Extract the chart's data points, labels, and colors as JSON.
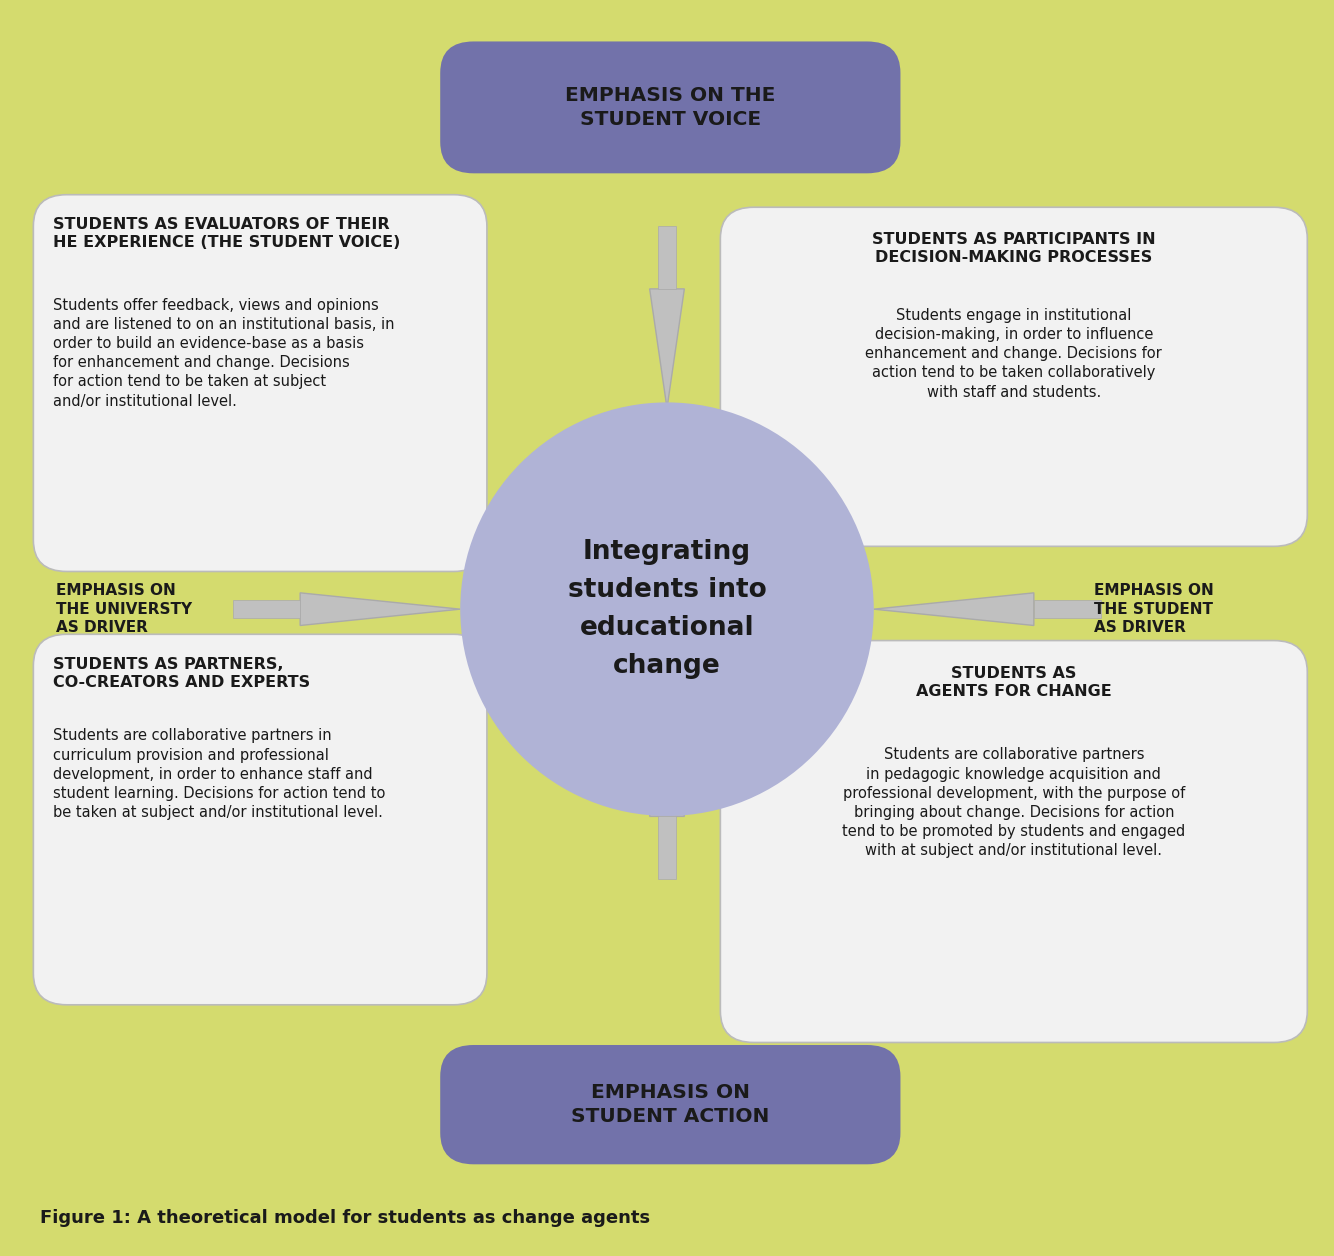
{
  "bg_color": "#d4db6e",
  "circle_color": "#b0b3d6",
  "box_color_blue": "#7272aa",
  "box_color_white": "#f2f2f2",
  "box_edge_color": "#bbbbbb",
  "arrow_color": "#c0c0c0",
  "arrow_edge_color": "#aaaaaa",
  "text_dark": "#1a1a1a",
  "center_text": "Integrating\nstudents into\neducational\nchange",
  "top_box_text": "EMPHASIS ON THE\nSTUDENT VOICE",
  "bottom_box_text": "EMPHASIS ON\nSTUDENT ACTION",
  "left_label": "EMPHASIS ON\nTHE UNIVERSTY\nAS DRIVER",
  "right_label": "EMPHASIS ON\nTHE STUDENT\nAS DRIVER",
  "tl_title": "STUDENTS AS EVALUATORS OF THEIR\nHE EXPERIENCE (THE STUDENT VOICE)",
  "tl_body": "Students offer feedback, views and opinions\nand are listened to on an institutional basis, in\norder to build an evidence-base as a basis\nfor enhancement and change. Decisions\nfor action tend to be taken at subject\nand/or institutional level.",
  "tr_title": "STUDENTS AS PARTICIPANTS IN\nDECISION-MAKING PROCESSES",
  "tr_body": "Students engage in institutional\ndecision-making, in order to influence\nenhancement and change. Decisions for\naction tend to be taken collaboratively\nwith staff and students.",
  "bl_title": "STUDENTS AS PARTNERS,\nCO-CREATORS AND EXPERTS",
  "bl_body": "Students are collaborative partners in\ncurriculum provision and professional\ndevelopment, in order to enhance staff and\nstudent learning. Decisions for action tend to\nbe taken at subject and/or institutional level.",
  "br_title": "STUDENTS AS\nAGENTS FOR CHANGE",
  "br_body": "Students are collaborative partners\nin pedagogic knowledge acquisition and\nprofessional development, with the purpose of\nbringing about change. Decisions for action\ntend to be promoted by students and engaged\nwith at subject and/or institutional level.",
  "figure_caption": "Figure 1: A theoretical model for students as change agents"
}
